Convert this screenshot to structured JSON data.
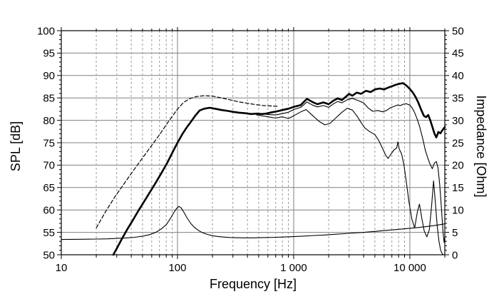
{
  "chart_data": {
    "type": "line",
    "title": "",
    "xlabel": "Frequency [Hz]",
    "ylabel_left": "SPL [dB]",
    "ylabel_right": "Impedance [Ohm]",
    "x_axis": {
      "scale": "log",
      "min": 10,
      "max": 20000,
      "major_ticks": [
        {
          "value": 10,
          "label": "10"
        },
        {
          "value": 100,
          "label": "100"
        },
        {
          "value": 1000,
          "label": "1 000"
        },
        {
          "value": 10000,
          "label": "10 000"
        }
      ],
      "minor_ticks": [
        20,
        30,
        40,
        50,
        60,
        70,
        80,
        90,
        200,
        300,
        400,
        500,
        600,
        700,
        800,
        900,
        2000,
        3000,
        4000,
        5000,
        6000,
        7000,
        8000,
        9000,
        20000
      ]
    },
    "y_left_axis": {
      "min": 50,
      "max": 100,
      "tick_step": 5,
      "minor_step": 1,
      "tick_labels": [
        "50",
        "55",
        "60",
        "65",
        "70",
        "75",
        "80",
        "85",
        "90",
        "95",
        "100"
      ]
    },
    "y_right_axis": {
      "min": 0,
      "max": 50,
      "tick_step": 5,
      "minor_step": 1,
      "tick_labels": [
        "0",
        "5",
        "10",
        "15",
        "20",
        "25",
        "30",
        "35",
        "40",
        "45",
        "50"
      ]
    },
    "grid": {
      "horizontal": "solid-gray",
      "vertical_minor": "dashed-gray",
      "vertical_major": "solid-gray"
    },
    "legend": "none",
    "series": [
      {
        "name": "spl-dashed",
        "axis": "left",
        "line": "dashed",
        "stroke_width": 1.2,
        "points": [
          [
            20,
            56.0
          ],
          [
            24,
            59.6
          ],
          [
            29,
            63.0
          ],
          [
            35,
            66.0
          ],
          [
            42,
            68.9
          ],
          [
            50,
            71.6
          ],
          [
            60,
            74.4
          ],
          [
            71,
            77.0
          ],
          [
            84,
            79.8
          ],
          [
            100,
            82.5
          ],
          [
            112,
            83.9
          ],
          [
            126,
            84.8
          ],
          [
            145,
            85.3
          ],
          [
            170,
            85.5
          ],
          [
            200,
            85.4
          ],
          [
            240,
            85.0
          ],
          [
            290,
            84.5
          ],
          [
            340,
            84.1
          ],
          [
            400,
            83.8
          ],
          [
            470,
            83.5
          ],
          [
            550,
            83.3
          ],
          [
            640,
            83.2
          ],
          [
            730,
            83.1
          ]
        ]
      },
      {
        "name": "spl-off-axis-2-thin",
        "axis": "left",
        "line": "solid",
        "stroke_width": 1.1,
        "points": [
          [
            480,
            81.2
          ],
          [
            600,
            80.8
          ],
          [
            700,
            80.5
          ],
          [
            800,
            80.8
          ],
          [
            900,
            80.4
          ],
          [
            1000,
            81.0
          ],
          [
            1150,
            81.9
          ],
          [
            1280,
            82.4
          ],
          [
            1450,
            81.1
          ],
          [
            1650,
            79.8
          ],
          [
            1850,
            79.0
          ],
          [
            2050,
            79.3
          ],
          [
            2300,
            80.5
          ],
          [
            2600,
            81.8
          ],
          [
            2900,
            82.7
          ],
          [
            3200,
            82.3
          ],
          [
            3500,
            81.0
          ],
          [
            3800,
            79.5
          ],
          [
            4100,
            78.3
          ],
          [
            4500,
            77.5
          ],
          [
            5000,
            76.8
          ],
          [
            5400,
            75.5
          ],
          [
            5800,
            73.8
          ],
          [
            6200,
            72.2
          ],
          [
            6500,
            71.5
          ],
          [
            6900,
            72.5
          ],
          [
            7300,
            73.4
          ],
          [
            7700,
            73.8
          ],
          [
            7900,
            75.2
          ],
          [
            8100,
            73.6
          ],
          [
            8500,
            72.5
          ],
          [
            8900,
            70.0
          ],
          [
            9300,
            66.5
          ],
          [
            9800,
            62.0
          ],
          [
            10400,
            58.0
          ],
          [
            11000,
            56.0
          ],
          [
            11600,
            59.5
          ],
          [
            12100,
            61.3
          ],
          [
            12700,
            58.0
          ],
          [
            13300,
            55.3
          ],
          [
            14000,
            54.0
          ],
          [
            14700,
            55.5
          ],
          [
            15400,
            61.0
          ],
          [
            16000,
            66.5
          ],
          [
            16600,
            61.5
          ],
          [
            17200,
            56.5
          ],
          [
            17800,
            53.0
          ],
          [
            18400,
            51.0
          ],
          [
            19000,
            50.2
          ],
          [
            19400,
            50.0
          ]
        ]
      },
      {
        "name": "spl-off-axis-1-thin",
        "axis": "left",
        "line": "solid",
        "stroke_width": 1.1,
        "points": [
          [
            480,
            81.6
          ],
          [
            600,
            81.3
          ],
          [
            700,
            81.2
          ],
          [
            800,
            81.5
          ],
          [
            900,
            81.8
          ],
          [
            1000,
            82.4
          ],
          [
            1150,
            82.9
          ],
          [
            1300,
            84.1
          ],
          [
            1450,
            83.4
          ],
          [
            1600,
            83.0
          ],
          [
            1800,
            83.3
          ],
          [
            2000,
            82.9
          ],
          [
            2200,
            83.7
          ],
          [
            2400,
            84.2
          ],
          [
            2600,
            83.9
          ],
          [
            2900,
            84.6
          ],
          [
            3200,
            84.9
          ],
          [
            3600,
            84.4
          ],
          [
            4000,
            83.9
          ],
          [
            4400,
            82.7
          ],
          [
            4800,
            82.0
          ],
          [
            5300,
            82.2
          ],
          [
            5800,
            81.9
          ],
          [
            6300,
            82.2
          ],
          [
            6800,
            82.8
          ],
          [
            7300,
            83.1
          ],
          [
            7800,
            83.4
          ],
          [
            8300,
            83.3
          ],
          [
            8800,
            83.6
          ],
          [
            9300,
            83.7
          ],
          [
            10000,
            83.4
          ],
          [
            10500,
            82.7
          ],
          [
            11000,
            81.7
          ],
          [
            11600,
            80.2
          ],
          [
            12200,
            78.4
          ],
          [
            12900,
            75.9
          ],
          [
            13600,
            73.3
          ],
          [
            14300,
            71.5
          ],
          [
            15000,
            70.1
          ],
          [
            15600,
            69.2
          ],
          [
            16300,
            70.5
          ],
          [
            16900,
            70.8
          ],
          [
            17500,
            69.3
          ],
          [
            18100,
            65.5
          ],
          [
            18700,
            60.5
          ],
          [
            19300,
            55.0
          ],
          [
            19700,
            52.8
          ],
          [
            20000,
            54.0
          ]
        ]
      },
      {
        "name": "impedance",
        "axis": "right",
        "line": "solid",
        "stroke_width": 1.1,
        "points": [
          [
            10,
            3.4
          ],
          [
            15,
            3.45
          ],
          [
            20,
            3.5
          ],
          [
            25,
            3.55
          ],
          [
            30,
            3.65
          ],
          [
            36,
            3.75
          ],
          [
            43,
            3.9
          ],
          [
            50,
            4.15
          ],
          [
            58,
            4.5
          ],
          [
            65,
            5.0
          ],
          [
            72,
            5.7
          ],
          [
            80,
            6.7
          ],
          [
            87,
            8.1
          ],
          [
            93,
            9.4
          ],
          [
            98,
            10.3
          ],
          [
            103,
            10.8
          ],
          [
            108,
            10.4
          ],
          [
            114,
            9.4
          ],
          [
            121,
            8.2
          ],
          [
            130,
            7.0
          ],
          [
            140,
            6.1
          ],
          [
            152,
            5.4
          ],
          [
            165,
            4.9
          ],
          [
            180,
            4.55
          ],
          [
            200,
            4.25
          ],
          [
            225,
            4.05
          ],
          [
            250,
            3.95
          ],
          [
            280,
            3.85
          ],
          [
            320,
            3.8
          ],
          [
            370,
            3.78
          ],
          [
            430,
            3.78
          ],
          [
            500,
            3.8
          ],
          [
            600,
            3.85
          ],
          [
            700,
            3.9
          ],
          [
            800,
            3.95
          ],
          [
            1000,
            4.05
          ],
          [
            1200,
            4.15
          ],
          [
            1500,
            4.3
          ],
          [
            1800,
            4.4
          ],
          [
            2200,
            4.55
          ],
          [
            2700,
            4.7
          ],
          [
            3300,
            4.85
          ],
          [
            4000,
            5.0
          ],
          [
            5000,
            5.2
          ],
          [
            6000,
            5.4
          ],
          [
            7500,
            5.6
          ],
          [
            9000,
            5.8
          ],
          [
            10000,
            5.9
          ],
          [
            12000,
            6.1
          ],
          [
            14000,
            6.3
          ],
          [
            16000,
            6.5
          ],
          [
            18000,
            6.7
          ],
          [
            20000,
            6.9
          ]
        ]
      },
      {
        "name": "spl-main-thick",
        "axis": "left",
        "line": "solid",
        "stroke_width": 2.6,
        "points": [
          [
            28,
            50.0
          ],
          [
            30,
            51.4
          ],
          [
            33,
            53.4
          ],
          [
            37,
            55.7
          ],
          [
            41,
            57.6
          ],
          [
            46,
            59.8
          ],
          [
            52,
            62.0
          ],
          [
            58,
            64.0
          ],
          [
            65,
            66.1
          ],
          [
            73,
            68.3
          ],
          [
            82,
            70.6
          ],
          [
            92,
            73.2
          ],
          [
            100,
            75.0
          ],
          [
            110,
            76.9
          ],
          [
            120,
            78.4
          ],
          [
            130,
            79.6
          ],
          [
            142,
            81.0
          ],
          [
            155,
            82.2
          ],
          [
            170,
            82.6
          ],
          [
            190,
            82.8
          ],
          [
            210,
            82.6
          ],
          [
            240,
            82.3
          ],
          [
            270,
            82.1
          ],
          [
            300,
            81.9
          ],
          [
            340,
            81.7
          ],
          [
            380,
            81.6
          ],
          [
            430,
            81.4
          ],
          [
            480,
            81.5
          ],
          [
            530,
            81.4
          ],
          [
            580,
            81.5
          ],
          [
            650,
            81.8
          ],
          [
            720,
            82.0
          ],
          [
            800,
            82.3
          ],
          [
            900,
            82.6
          ],
          [
            1000,
            83.0
          ],
          [
            1150,
            83.4
          ],
          [
            1300,
            84.8
          ],
          [
            1450,
            84.1
          ],
          [
            1600,
            83.6
          ],
          [
            1800,
            84.0
          ],
          [
            2000,
            83.6
          ],
          [
            2200,
            84.4
          ],
          [
            2400,
            84.9
          ],
          [
            2600,
            84.5
          ],
          [
            2800,
            85.2
          ],
          [
            3000,
            85.9
          ],
          [
            3200,
            85.5
          ],
          [
            3500,
            86.2
          ],
          [
            3800,
            85.9
          ],
          [
            4200,
            86.6
          ],
          [
            4600,
            86.3
          ],
          [
            5000,
            86.9
          ],
          [
            5500,
            87.1
          ],
          [
            6000,
            86.9
          ],
          [
            6500,
            87.3
          ],
          [
            7000,
            87.6
          ],
          [
            7500,
            87.9
          ],
          [
            8000,
            88.1
          ],
          [
            8700,
            88.3
          ],
          [
            9300,
            87.8
          ],
          [
            10000,
            87.0
          ],
          [
            10600,
            86.2
          ],
          [
            11200,
            85.2
          ],
          [
            11800,
            84.0
          ],
          [
            12500,
            82.4
          ],
          [
            13200,
            81.0
          ],
          [
            13800,
            80.7
          ],
          [
            14400,
            81.2
          ],
          [
            15000,
            80.0
          ],
          [
            15600,
            78.6
          ],
          [
            16300,
            77.0
          ],
          [
            16900,
            76.2
          ],
          [
            17600,
            77.4
          ],
          [
            18300,
            77.1
          ],
          [
            19100,
            77.8
          ],
          [
            20000,
            78.5
          ]
        ]
      }
    ]
  },
  "colors": {
    "background": "#ffffff",
    "frame": "#000000",
    "curve": "#000000",
    "grid_major": "#808080",
    "grid_minor": "#9a9a9a",
    "text": "#000000"
  }
}
